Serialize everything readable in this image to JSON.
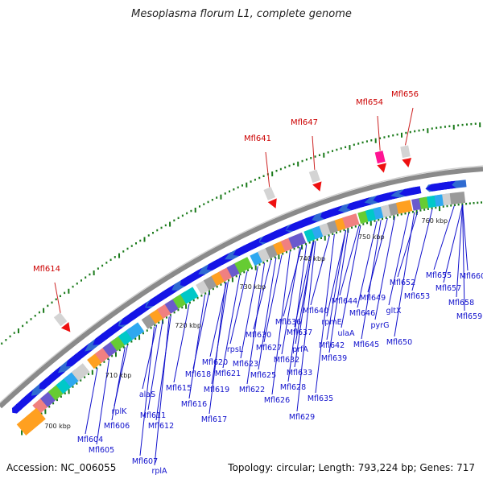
{
  "title": "Mesoplasma florum L1, complete genome",
  "footer": {
    "accession": "Accession: NC_006055",
    "summary": "Topology: circular; Length: 793,224 bp; Genes: 717"
  },
  "colors": {
    "backbone": "#8a8a8a",
    "tick_text": "#222222",
    "gene_label": "#1010cc",
    "red_label": "#cc0000",
    "arrow_blue": "#1414e6",
    "dot_green": "#1a7a1a"
  },
  "ticks": [
    "700 kbp",
    "710 kbp",
    "720 kbp",
    "730 kbp",
    "740 kbp",
    "750 kbp",
    "760 kbp"
  ],
  "red_features": [
    "Mfl614",
    "Mfl641",
    "Mfl647",
    "Mfl654",
    "Mfl656"
  ],
  "gene_labels": [
    "Mfl604",
    "Mfl605",
    "Mfl606",
    "rplK",
    "Mfl607",
    "rplA",
    "Mfl611",
    "Mfl612",
    "alaS",
    "Mfl615",
    "Mfl616",
    "Mfl617",
    "Mfl618",
    "Mfl619",
    "Mfl620",
    "Mfl621",
    "Mfl622",
    "Mfl623",
    "rpsL",
    "Mfl625",
    "Mfl626",
    "Mfl627",
    "Mfl628",
    "Mfl629",
    "Mfl630",
    "Mfl632",
    "Mfl633",
    "Mfl635",
    "Mfl636",
    "Mfl637",
    "prfA",
    "Mfl639",
    "Mfl640",
    "rpmE",
    "Mfl642",
    "Mfl644",
    "ulaA",
    "Mfl645",
    "Mfl646",
    "pyrG",
    "Mfl649",
    "Mfl650",
    "gltX",
    "Mfl652",
    "Mfl653",
    "Mfl655",
    "Mfl657",
    "Mfl658",
    "Mfl659",
    "Mfl660"
  ]
}
